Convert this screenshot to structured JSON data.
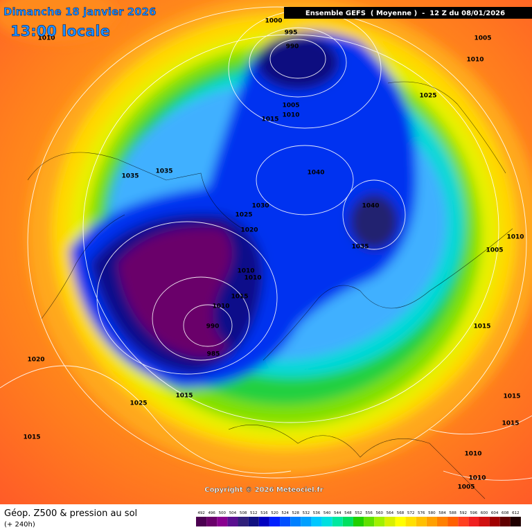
{
  "header": {
    "date": "Dimanche 18 janvier 2026",
    "time": "13:00 locale",
    "model": "Ensemble GEFS  ( Moyenne )  -  12 Z du 08/01/2026"
  },
  "isobar_labels": [
    "1010",
    "1000",
    "995",
    "990",
    "1005",
    "1010",
    "1005",
    "1010",
    "1015",
    "1025",
    "1035",
    "1035",
    "1040",
    "1040",
    "1030",
    "1025",
    "1020",
    "1035",
    "1005",
    "1010",
    "1010",
    "1010",
    "1015",
    "1010",
    "990",
    "985",
    "1015",
    "1020",
    "1025",
    "1015",
    "1015",
    "1015",
    "1015",
    "1010",
    "1010",
    "1005"
  ],
  "copyright": "Copyright © 2026 Meteociel.fr",
  "footer": {
    "title": "Géop. Z500 & pression au sol",
    "lead": "(+ 240h)"
  },
  "colorbar": {
    "labels": [
      "492",
      "496",
      "500",
      "504",
      "508",
      "512",
      "516",
      "520",
      "524",
      "528",
      "532",
      "536",
      "540",
      "544",
      "548",
      "552",
      "556",
      "560",
      "564",
      "568",
      "572",
      "576",
      "580",
      "584",
      "588",
      "592",
      "596",
      "600",
      "604",
      "608",
      "612"
    ],
    "colors": [
      "#4b0050",
      "#6a006a",
      "#8a0090",
      "#5a1090",
      "#30207a",
      "#101080",
      "#0000c0",
      "#0020ff",
      "#0050ff",
      "#0080ff",
      "#00a0ff",
      "#00c8ff",
      "#00e0e0",
      "#00e8a0",
      "#00e060",
      "#20d000",
      "#60e000",
      "#a0f000",
      "#d8f000",
      "#ffff00",
      "#ffe000",
      "#ffc000",
      "#ffa000",
      "#ff8000",
      "#ff6000",
      "#ff4020",
      "#f02020",
      "#d01010",
      "#a00000",
      "#600000",
      "#200000"
    ]
  }
}
